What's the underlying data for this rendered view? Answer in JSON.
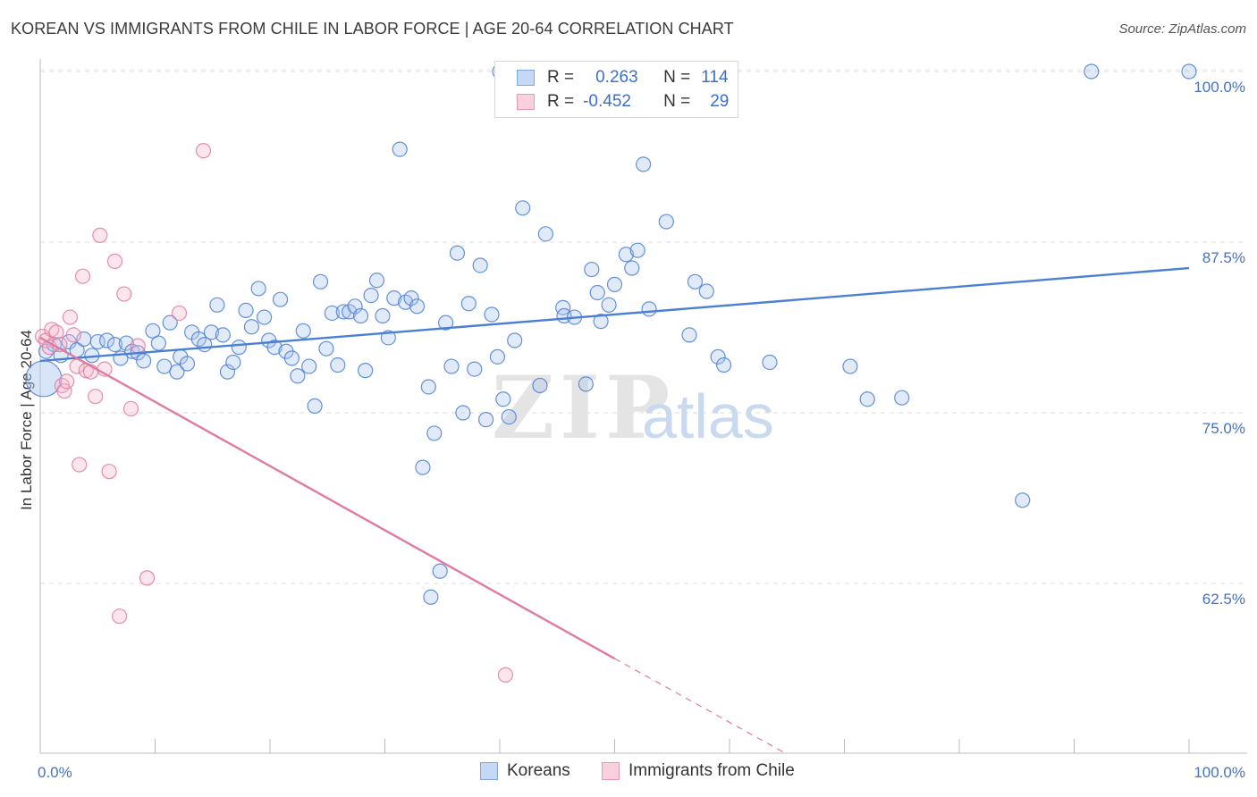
{
  "title": "KOREAN VS IMMIGRANTS FROM CHILE IN LABOR FORCE | AGE 20-64 CORRELATION CHART",
  "source": "Source: ZipAtlas.com",
  "watermark": {
    "zip": "ZIP",
    "atlas": "atlas"
  },
  "legend": {
    "rows": [
      {
        "r_label": "R =",
        "r_value": "0.263",
        "n_label": "N =",
        "n_value": "114",
        "color": "#a9c4ee"
      },
      {
        "r_label": "R =",
        "r_value": "-0.452",
        "n_label": "N =",
        "n_value": "29",
        "color": "#f5b8ca"
      }
    ]
  },
  "bottom_legend": [
    {
      "label": "Koreans",
      "color": "#a9c4ee"
    },
    {
      "label": "Immigrants from Chile",
      "color": "#f5b8ca"
    }
  ],
  "chart_data": {
    "type": "scatter",
    "ylabel": "In Labor Force | Age 20-64",
    "xlim": [
      0,
      100
    ],
    "ylim": [
      51,
      101
    ],
    "x_tick_labels": [
      {
        "value": 0,
        "label": "0.0%"
      },
      {
        "value": 100,
        "label": "100.0%"
      }
    ],
    "y_tick_labels": [
      {
        "value": 100,
        "label": "100.0%"
      },
      {
        "value": 87.5,
        "label": "87.5%"
      },
      {
        "value": 75,
        "label": "75.0%"
      },
      {
        "value": 62.5,
        "label": "62.5%"
      }
    ],
    "grid": true,
    "series": [
      {
        "name": "Koreans",
        "color": "#4a7fd4",
        "fill": "#a9c4ee",
        "trend": {
          "x": [
            0,
            100
          ],
          "y": [
            78.8,
            85.6
          ],
          "dashed_from": null
        },
        "points": [
          [
            0.3,
            77.5
          ],
          [
            0.5,
            79.5
          ],
          [
            1.2,
            80.0
          ],
          [
            1.8,
            79.2
          ],
          [
            2.5,
            80.2
          ],
          [
            3.2,
            79.6
          ],
          [
            3.8,
            80.4
          ],
          [
            4.5,
            79.2
          ],
          [
            5.0,
            80.2
          ],
          [
            5.8,
            80.3
          ],
          [
            6.5,
            80.0
          ],
          [
            7.0,
            79.0
          ],
          [
            7.5,
            80.1
          ],
          [
            8.0,
            79.5
          ],
          [
            8.5,
            79.4
          ],
          [
            9.0,
            78.8
          ],
          [
            9.8,
            81.0
          ],
          [
            10.3,
            80.1
          ],
          [
            10.8,
            78.4
          ],
          [
            11.3,
            81.6
          ],
          [
            11.9,
            78.0
          ],
          [
            12.2,
            79.1
          ],
          [
            12.8,
            78.6
          ],
          [
            13.2,
            80.9
          ],
          [
            13.8,
            80.4
          ],
          [
            14.3,
            80.0
          ],
          [
            14.9,
            80.9
          ],
          [
            15.4,
            82.9
          ],
          [
            15.9,
            80.7
          ],
          [
            16.3,
            78.0
          ],
          [
            16.8,
            78.7
          ],
          [
            17.3,
            79.8
          ],
          [
            17.9,
            82.5
          ],
          [
            18.4,
            81.3
          ],
          [
            19.0,
            84.1
          ],
          [
            19.5,
            82.0
          ],
          [
            19.9,
            80.3
          ],
          [
            20.4,
            79.8
          ],
          [
            20.9,
            83.3
          ],
          [
            21.4,
            79.5
          ],
          [
            21.9,
            79.0
          ],
          [
            22.4,
            77.7
          ],
          [
            22.9,
            81.0
          ],
          [
            23.4,
            78.4
          ],
          [
            23.9,
            75.5
          ],
          [
            24.4,
            84.6
          ],
          [
            24.9,
            79.7
          ],
          [
            25.4,
            82.3
          ],
          [
            25.9,
            78.5
          ],
          [
            26.4,
            82.4
          ],
          [
            26.9,
            82.4
          ],
          [
            27.4,
            82.8
          ],
          [
            27.9,
            82.1
          ],
          [
            28.3,
            78.1
          ],
          [
            28.8,
            83.6
          ],
          [
            29.3,
            84.7
          ],
          [
            29.8,
            82.1
          ],
          [
            30.3,
            80.5
          ],
          [
            30.8,
            83.4
          ],
          [
            31.3,
            94.3
          ],
          [
            31.8,
            83.1
          ],
          [
            32.3,
            83.4
          ],
          [
            32.8,
            82.8
          ],
          [
            33.3,
            71.0
          ],
          [
            33.8,
            76.9
          ],
          [
            34.3,
            73.5
          ],
          [
            34.8,
            63.4
          ],
          [
            34.0,
            61.5
          ],
          [
            35.3,
            81.6
          ],
          [
            35.8,
            78.4
          ],
          [
            36.3,
            86.7
          ],
          [
            36.8,
            75.0
          ],
          [
            37.3,
            83.0
          ],
          [
            37.8,
            78.2
          ],
          [
            38.3,
            85.8
          ],
          [
            38.8,
            74.5
          ],
          [
            39.3,
            82.2
          ],
          [
            39.8,
            79.1
          ],
          [
            40.3,
            76.0
          ],
          [
            40.8,
            74.7
          ],
          [
            41.3,
            80.3
          ],
          [
            42.0,
            90.0
          ],
          [
            43.5,
            77.0
          ],
          [
            44.0,
            88.1
          ],
          [
            45.5,
            82.7
          ],
          [
            45.6,
            82.1
          ],
          [
            46.5,
            82.0
          ],
          [
            47.5,
            77.1
          ],
          [
            48.0,
            85.5
          ],
          [
            48.5,
            83.8
          ],
          [
            48.8,
            81.7
          ],
          [
            49.5,
            82.9
          ],
          [
            50.0,
            84.4
          ],
          [
            51.0,
            86.6
          ],
          [
            51.5,
            85.6
          ],
          [
            52.0,
            86.9
          ],
          [
            52.5,
            93.2
          ],
          [
            53.0,
            82.6
          ],
          [
            54.5,
            89.0
          ],
          [
            56.5,
            80.7
          ],
          [
            57.0,
            84.6
          ],
          [
            58.0,
            83.9
          ],
          [
            59.0,
            79.1
          ],
          [
            59.5,
            78.5
          ],
          [
            63.5,
            78.7
          ],
          [
            70.5,
            78.4
          ],
          [
            72.0,
            76.0
          ],
          [
            75.0,
            76.1
          ],
          [
            85.5,
            68.6
          ],
          [
            91.5,
            100.0
          ],
          [
            100.0,
            100.0
          ],
          [
            40.0,
            100.0
          ]
        ]
      },
      {
        "name": "Immigrants from Chile",
        "color": "#e07aa0",
        "fill": "#f5b8ca",
        "trend": {
          "x": [
            0,
            50,
            65
          ],
          "y": [
            80.5,
            57.0,
            50.0
          ],
          "dashed_from": 50
        },
        "points": [
          [
            0.2,
            80.6
          ],
          [
            0.5,
            80.3
          ],
          [
            0.8,
            79.8
          ],
          [
            1.0,
            81.1
          ],
          [
            1.4,
            80.9
          ],
          [
            1.7,
            80.0
          ],
          [
            1.9,
            77.0
          ],
          [
            2.1,
            76.6
          ],
          [
            2.3,
            77.3
          ],
          [
            2.6,
            82.0
          ],
          [
            2.9,
            80.7
          ],
          [
            3.2,
            78.4
          ],
          [
            3.4,
            71.2
          ],
          [
            3.7,
            85.0
          ],
          [
            4.0,
            78.1
          ],
          [
            4.4,
            78.0
          ],
          [
            4.8,
            76.2
          ],
          [
            5.2,
            88.0
          ],
          [
            5.6,
            78.2
          ],
          [
            6.0,
            70.7
          ],
          [
            6.5,
            86.1
          ],
          [
            6.9,
            60.1
          ],
          [
            7.3,
            83.7
          ],
          [
            7.9,
            75.3
          ],
          [
            9.3,
            62.9
          ],
          [
            12.1,
            82.3
          ],
          [
            14.2,
            94.2
          ],
          [
            40.5,
            55.8
          ],
          [
            8.5,
            79.9
          ]
        ]
      }
    ]
  }
}
